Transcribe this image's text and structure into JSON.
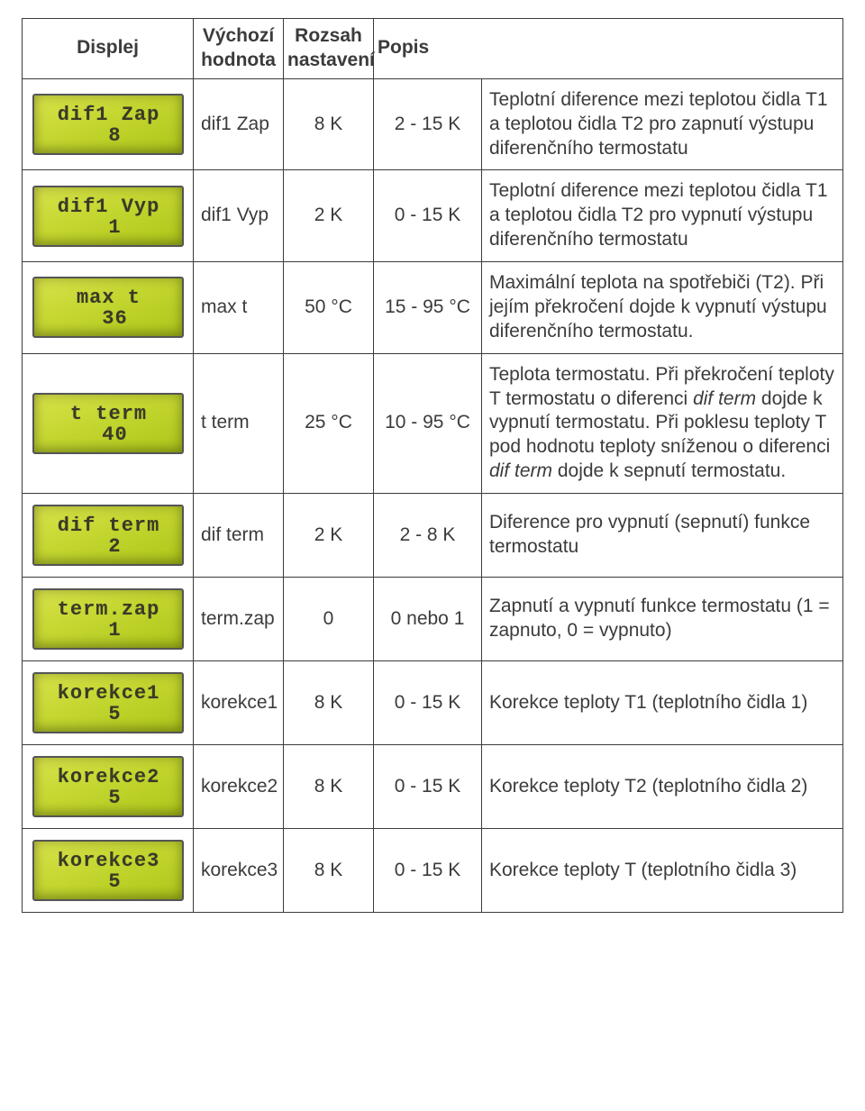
{
  "header": {
    "displej": "Displej",
    "vychozi": "Výchozí hodnota",
    "rozsah": "Rozsah nastavení",
    "popis": "Popis"
  },
  "lcd": {
    "bg_gradient_from": "#d8e34a",
    "bg_gradient_to": "#aec61a",
    "text_color": "#3a3a28",
    "border_color": "#555555"
  },
  "rows": [
    {
      "lcd_line1": "dif1 Zap",
      "lcd_line2": "8",
      "name": "dif1 Zap",
      "default": "8 K",
      "range": "2 - 15 K",
      "desc": "Teplotní diference mezi teplotou čidla T1 a teplotou čidla T2 pro zapnutí výstupu diferenčního termostatu"
    },
    {
      "lcd_line1": "dif1 Vyp",
      "lcd_line2": "1",
      "name": "dif1 Vyp",
      "default": "2 K",
      "range": "0 - 15 K",
      "desc": "Teplotní diference mezi teplotou čidla T1 a teplotou čidla T2 pro vypnutí výstupu diferenčního termostatu"
    },
    {
      "lcd_line1": "max t",
      "lcd_line2": "36",
      "name": "max t",
      "default": "50 °C",
      "range": "15 - 95 °C",
      "desc": "Maximální teplota na spotřebiči (T2). Při jejím překročení dojde k vypnutí výstupu diferenčního termostatu."
    },
    {
      "lcd_line1": "t term",
      "lcd_line2": "40",
      "name": "t term",
      "default": "25 °C",
      "range": "10 - 95 °C",
      "desc_html": "Teplota termostatu. Při překročení teploty T termostatu o diferenci <em>dif term</em> dojde k vypnutí termostatu. Při poklesu teploty T pod hodnotu teploty sníženou o diferenci <em>dif term</em> dojde k sepnutí termostatu."
    },
    {
      "lcd_line1": "dif term",
      "lcd_line2": "2",
      "name": "dif term",
      "default": "2 K",
      "range": "2 - 8 K",
      "desc": "Diference pro vypnutí (sepnutí) funkce termostatu"
    },
    {
      "lcd_line1": "term.zap",
      "lcd_line2": "1",
      "name": "term.zap",
      "default": "0",
      "range": "0 nebo 1",
      "desc": "Zapnutí a vypnutí funkce termostatu (1 = zapnuto, 0 = vypnuto)"
    },
    {
      "lcd_line1": "korekce1",
      "lcd_line2": "5",
      "name": "korekce1",
      "default": "8 K",
      "range": "0 - 15 K",
      "desc": "Korekce teploty T1 (teplotního čidla 1)"
    },
    {
      "lcd_line1": "korekce2",
      "lcd_line2": "5",
      "name": "korekce2",
      "default": "8 K",
      "range": "0 - 15 K",
      "desc": "Korekce teploty T2 (teplotního čidla 2)"
    },
    {
      "lcd_line1": "korekce3",
      "lcd_line2": "5",
      "name": "korekce3",
      "default": "8 K",
      "range": "0 - 15 K",
      "desc": "Korekce teploty T (teplotního čidla 3)"
    }
  ]
}
